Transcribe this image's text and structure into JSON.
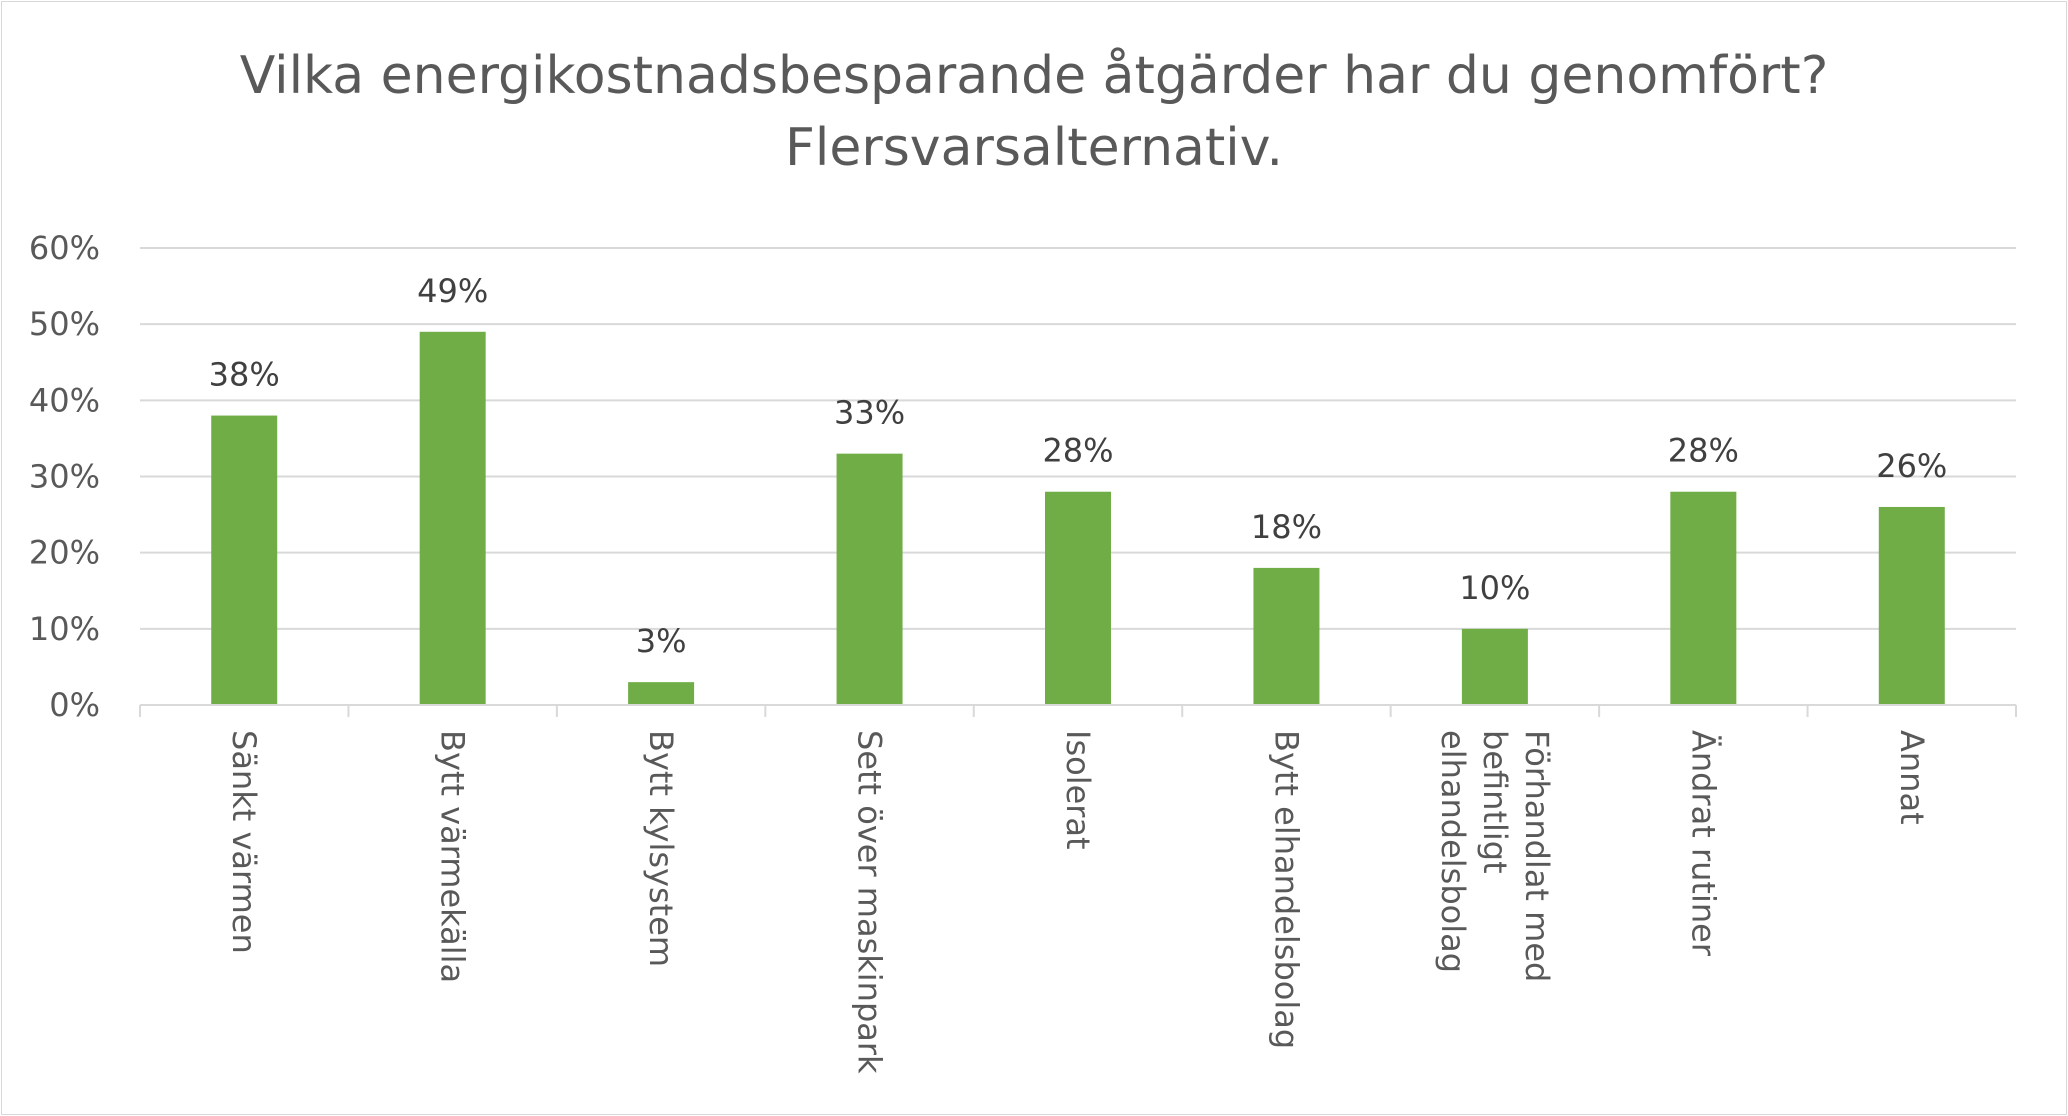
{
  "chart_data": {
    "type": "bar",
    "title": "Vilka energikostnadsbesparande åtgärder har du genomfört? Flersvarsalternativ.",
    "title_lines": [
      "Vilka energikostnadsbesparande åtgärder har du genomfört?",
      "Flersvarsalternativ."
    ],
    "categories": [
      "Sänkt värmen",
      "Bytt värmekälla",
      "Bytt kylsystem",
      "Sett över maskinpark",
      "Isolerat",
      "Bytt elhandelsbolag",
      "Förhandlat med befintligt elhandelsbolag",
      "Ändrat rutiner",
      "Annat"
    ],
    "category_lines": [
      [
        "Sänkt värmen"
      ],
      [
        "Bytt värmekälla"
      ],
      [
        "Bytt kylsystem"
      ],
      [
        "Sett över maskinpark"
      ],
      [
        "Isolerat"
      ],
      [
        "Bytt elhandelsbolag"
      ],
      [
        "Förhandlat med",
        "befintligt",
        "elhandelsbolag"
      ],
      [
        "Ändrat rutiner"
      ],
      [
        "Annat"
      ]
    ],
    "values": [
      38,
      49,
      3,
      33,
      28,
      18,
      10,
      28,
      26
    ],
    "value_labels": [
      "38%",
      "49%",
      "3%",
      "33%",
      "28%",
      "18%",
      "10%",
      "28%",
      "26%"
    ],
    "yticks": [
      "0%",
      "10%",
      "20%",
      "30%",
      "40%",
      "50%",
      "60%"
    ],
    "ylim": [
      0,
      60
    ],
    "xlabel": "",
    "ylabel": "",
    "grid": true,
    "legend": "none",
    "bar_color": "#70ad47"
  }
}
